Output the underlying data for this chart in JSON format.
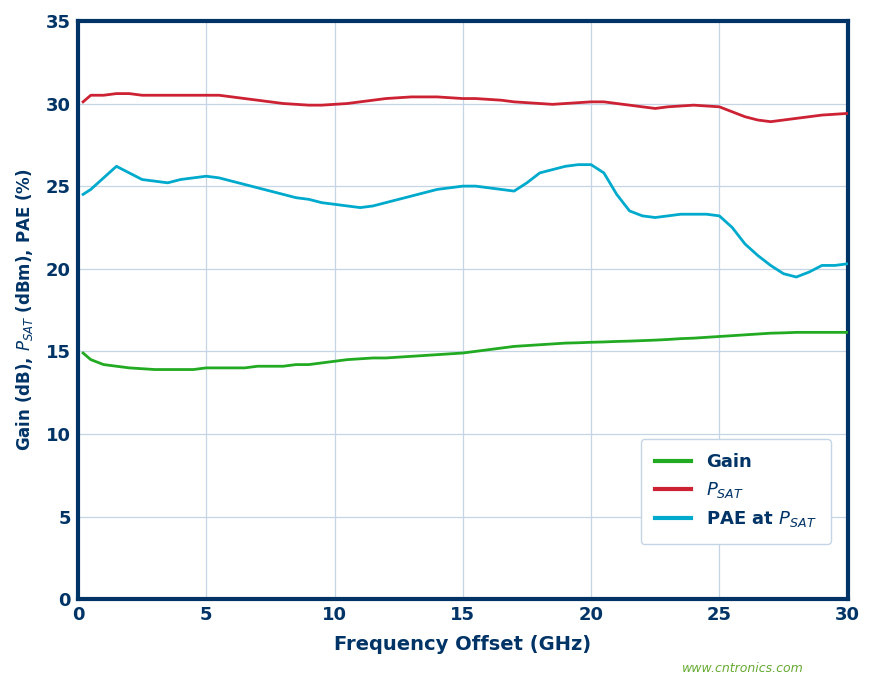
{
  "xlabel": "Frequency Offset (GHz)",
  "ylabel": "Gain (dB), P$_{SAT}$ (dBm), PAE (%)",
  "xlim": [
    0,
    30
  ],
  "ylim": [
    0,
    35
  ],
  "xticks": [
    0,
    5,
    10,
    15,
    20,
    25,
    30
  ],
  "yticks": [
    0,
    5,
    10,
    15,
    20,
    25,
    30,
    35
  ],
  "background_color": "#ffffff",
  "grid_color": "#c5d5e5",
  "gain_color": "#22aa22",
  "psat_color": "#cc2233",
  "pae_color": "#00aacc",
  "label_color": "#003366",
  "tick_color": "#003366",
  "spine_color": "#003366",
  "watermark_color": "#66aa33",
  "watermark_text": "www.cntronics.com",
  "gain_x": [
    0.2,
    0.5,
    1.0,
    1.5,
    2.0,
    2.5,
    3.0,
    3.5,
    4.0,
    4.5,
    5.0,
    5.5,
    6.0,
    6.5,
    7.0,
    7.5,
    8.0,
    8.5,
    9.0,
    9.5,
    10.0,
    10.5,
    11.0,
    11.5,
    12.0,
    12.5,
    13.0,
    13.5,
    14.0,
    14.5,
    15.0,
    15.5,
    16.0,
    16.5,
    17.0,
    17.5,
    18.0,
    18.5,
    19.0,
    19.5,
    20.0,
    20.5,
    21.0,
    21.5,
    22.0,
    22.5,
    23.0,
    23.5,
    24.0,
    24.5,
    25.0,
    25.5,
    26.0,
    26.5,
    27.0,
    27.5,
    28.0,
    28.5,
    29.0,
    29.5,
    30.0
  ],
  "gain_y": [
    14.9,
    14.5,
    14.2,
    14.1,
    14.0,
    13.95,
    13.9,
    13.9,
    13.9,
    13.9,
    14.0,
    14.0,
    14.0,
    14.0,
    14.1,
    14.1,
    14.1,
    14.2,
    14.2,
    14.3,
    14.4,
    14.5,
    14.55,
    14.6,
    14.6,
    14.65,
    14.7,
    14.75,
    14.8,
    14.85,
    14.9,
    15.0,
    15.1,
    15.2,
    15.3,
    15.35,
    15.4,
    15.45,
    15.5,
    15.52,
    15.55,
    15.57,
    15.6,
    15.62,
    15.65,
    15.68,
    15.72,
    15.77,
    15.8,
    15.85,
    15.9,
    15.95,
    16.0,
    16.05,
    16.1,
    16.12,
    16.15,
    16.15,
    16.15,
    16.15,
    16.15
  ],
  "psat_x": [
    0.2,
    0.5,
    1.0,
    1.5,
    2.0,
    2.5,
    3.0,
    3.5,
    4.0,
    4.5,
    5.0,
    5.5,
    6.0,
    6.5,
    7.0,
    7.5,
    8.0,
    8.5,
    9.0,
    9.5,
    10.0,
    10.5,
    11.0,
    11.5,
    12.0,
    12.5,
    13.0,
    13.5,
    14.0,
    14.5,
    15.0,
    15.5,
    16.0,
    16.5,
    17.0,
    17.5,
    18.0,
    18.5,
    19.0,
    19.5,
    20.0,
    20.5,
    21.0,
    21.5,
    22.0,
    22.5,
    23.0,
    23.5,
    24.0,
    24.5,
    25.0,
    25.5,
    26.0,
    26.5,
    27.0,
    27.5,
    28.0,
    28.5,
    29.0,
    29.5,
    30.0
  ],
  "psat_y": [
    30.1,
    30.5,
    30.5,
    30.6,
    30.6,
    30.5,
    30.5,
    30.5,
    30.5,
    30.5,
    30.5,
    30.5,
    30.4,
    30.3,
    30.2,
    30.1,
    30.0,
    29.95,
    29.9,
    29.9,
    29.95,
    30.0,
    30.1,
    30.2,
    30.3,
    30.35,
    30.4,
    30.4,
    30.4,
    30.35,
    30.3,
    30.3,
    30.25,
    30.2,
    30.1,
    30.05,
    30.0,
    29.95,
    30.0,
    30.05,
    30.1,
    30.1,
    30.0,
    29.9,
    29.8,
    29.7,
    29.8,
    29.85,
    29.9,
    29.85,
    29.8,
    29.5,
    29.2,
    29.0,
    28.9,
    29.0,
    29.1,
    29.2,
    29.3,
    29.35,
    29.4
  ],
  "pae_x": [
    0.2,
    0.5,
    1.0,
    1.5,
    2.0,
    2.5,
    3.0,
    3.5,
    4.0,
    4.5,
    5.0,
    5.5,
    6.0,
    6.5,
    7.0,
    7.5,
    8.0,
    8.5,
    9.0,
    9.5,
    10.0,
    10.5,
    11.0,
    11.5,
    12.0,
    12.5,
    13.0,
    13.5,
    14.0,
    14.5,
    15.0,
    15.5,
    16.0,
    16.5,
    17.0,
    17.5,
    18.0,
    18.5,
    19.0,
    19.5,
    20.0,
    20.5,
    21.0,
    21.5,
    22.0,
    22.5,
    23.0,
    23.5,
    24.0,
    24.5,
    25.0,
    25.5,
    26.0,
    26.5,
    27.0,
    27.5,
    28.0,
    28.5,
    29.0,
    29.5,
    30.0
  ],
  "pae_y": [
    24.5,
    24.8,
    25.5,
    26.2,
    25.8,
    25.4,
    25.3,
    25.2,
    25.4,
    25.5,
    25.6,
    25.5,
    25.3,
    25.1,
    24.9,
    24.7,
    24.5,
    24.3,
    24.2,
    24.0,
    23.9,
    23.8,
    23.7,
    23.8,
    24.0,
    24.2,
    24.4,
    24.6,
    24.8,
    24.9,
    25.0,
    25.0,
    24.9,
    24.8,
    24.7,
    25.2,
    25.8,
    26.0,
    26.2,
    26.3,
    26.3,
    25.8,
    24.5,
    23.5,
    23.2,
    23.1,
    23.2,
    23.3,
    23.3,
    23.3,
    23.2,
    22.5,
    21.5,
    20.8,
    20.2,
    19.7,
    19.5,
    19.8,
    20.2,
    20.2,
    20.3
  ]
}
